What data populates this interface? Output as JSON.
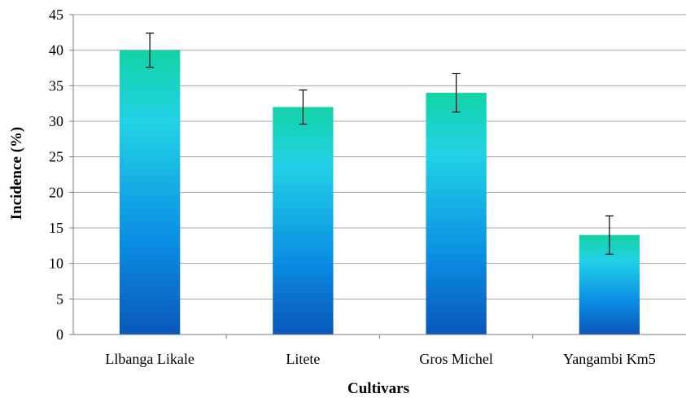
{
  "chart_data": {
    "type": "bar",
    "categories": [
      "Llbanga Likale",
      "Litete",
      "Gros Michel",
      "Yangambi Km5"
    ],
    "values": [
      40,
      32,
      34,
      14
    ],
    "error": [
      2.4,
      2.4,
      2.7,
      2.7
    ],
    "xlabel": "Cultivars",
    "ylabel": "Incidence (%)",
    "ylim": [
      0,
      45
    ],
    "yticks": [
      0,
      5,
      10,
      15,
      20,
      25,
      30,
      35,
      40,
      45
    ],
    "grid": true,
    "legend": "none",
    "colors": {
      "bar_top": "#12d3a6",
      "bar_mid": "#22d2e6",
      "bar_low": "#0a8de3",
      "bar_bottom": "#0a56b8"
    }
  }
}
